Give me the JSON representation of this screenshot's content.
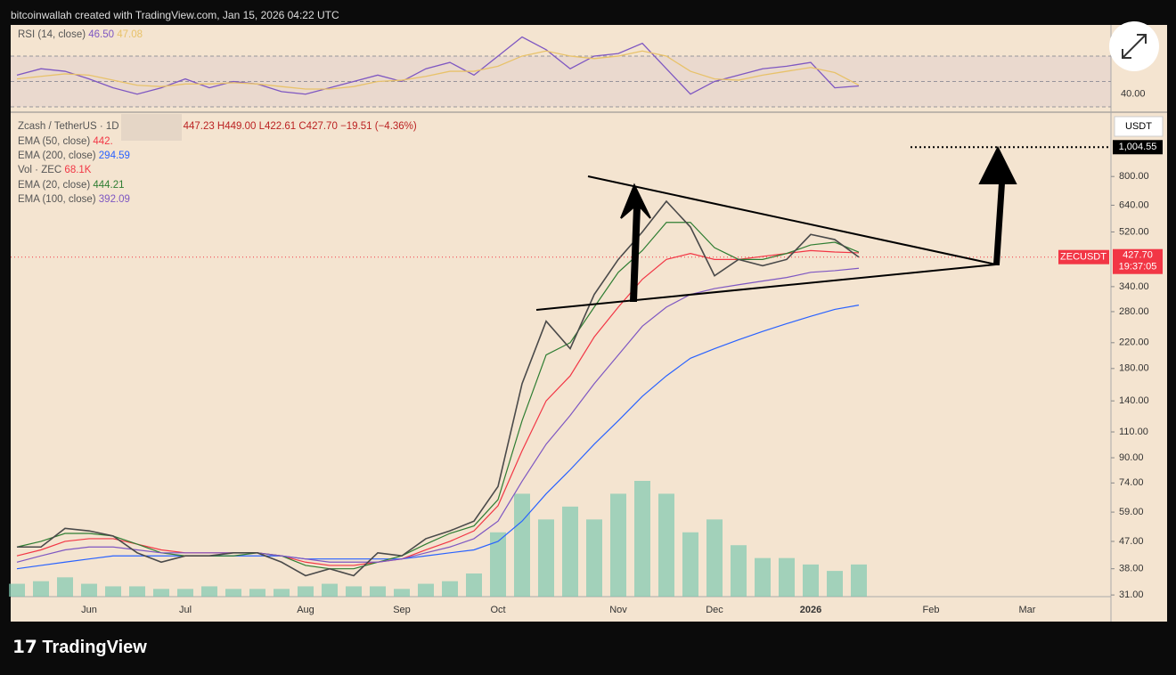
{
  "header": "bitcoinwallah created with TradingView.com, Jan 15, 2026 04:22 UTC",
  "brand": "TradingView",
  "chart_data": [
    {
      "type": "line",
      "name": "RSI (14, close)",
      "series": [
        {
          "name": "RSI (14, close)",
          "color": "#7e57c2",
          "last_label": "46.50",
          "values": [
            55,
            60,
            58,
            52,
            45,
            40,
            45,
            52,
            45,
            50,
            48,
            42,
            40,
            45,
            50,
            55,
            50,
            60,
            65,
            55,
            70,
            85,
            75,
            60,
            70,
            72,
            80,
            60,
            40,
            50,
            55,
            60,
            62,
            65,
            45,
            46.5,
            null,
            null,
            null,
            null,
            null,
            null,
            null
          ]
        },
        {
          "color": "#e8c26a",
          "last_label": "47.08",
          "values": [
            52,
            54,
            56,
            55,
            51,
            47,
            46,
            48,
            48,
            49,
            48,
            46,
            44,
            44,
            46,
            50,
            51,
            54,
            58,
            58,
            62,
            70,
            74,
            70,
            68,
            70,
            74,
            70,
            58,
            52,
            51,
            55,
            58,
            61,
            57,
            47.08,
            null,
            null,
            null,
            null,
            null,
            null,
            null
          ]
        }
      ],
      "ylim": [
        26.5,
        94.5
      ],
      "yticks": [
        {
          "value": 40,
          "label": "40.00"
        }
      ],
      "bands": [
        70,
        50,
        30
      ]
    },
    {
      "type": "line",
      "title": "Zcash / TetherUS · 1D",
      "ohlc": "447.23 H449.00 L422.61 C427.70",
      "change": "−19.51 (−4.36%)",
      "currency": "USDT",
      "symbol": "ZECUSDT",
      "countdown": "19:37:05",
      "last_label": "427.70",
      "log_scale": true,
      "target": {
        "value": 1004.55,
        "label": "1,004.55"
      },
      "categories": [
        null,
        null,
        null,
        "Jun",
        null,
        null,
        null,
        "Jul",
        null,
        null,
        null,
        null,
        "Aug",
        null,
        null,
        null,
        "Sep",
        null,
        null,
        null,
        "Oct",
        null,
        null,
        null,
        null,
        "Nov",
        null,
        null,
        null,
        "Dec",
        null,
        null,
        null,
        "2026",
        null,
        null,
        null,
        null,
        "Feb",
        null,
        null,
        null,
        "Mar"
      ],
      "close": {
        "color": "#4a4a4a",
        "values": [
          45,
          45,
          52,
          51,
          49,
          43,
          40,
          42,
          42,
          43,
          43,
          40,
          36,
          38,
          36,
          43,
          42,
          48,
          51,
          55,
          72,
          160,
          260,
          210,
          320,
          420,
          520,
          660,
          540,
          370,
          420,
          400,
          420,
          510,
          490,
          427.7,
          null,
          null,
          null,
          null,
          null,
          null,
          null
        ]
      },
      "series": [
        {
          "name": "EMA (50, close)",
          "color": "#f23645",
          "last_label": "442.",
          "values": [
            42,
            44,
            47,
            48,
            48,
            46,
            44,
            43,
            43,
            43,
            43,
            42,
            40,
            39,
            39,
            40,
            41,
            44,
            47,
            51,
            62,
            95,
            140,
            170,
            230,
            290,
            360,
            420,
            440,
            420,
            420,
            430,
            440,
            450,
            445,
            442,
            null,
            null,
            null,
            null,
            null,
            null,
            null
          ]
        },
        {
          "name": "EMA (200, close)",
          "color": "#2962ff",
          "last_label": "294.59",
          "values": [
            38,
            39,
            40,
            41,
            42,
            42,
            42,
            42,
            42,
            42,
            42,
            42,
            41,
            41,
            41,
            41,
            41,
            42,
            43,
            44,
            47,
            55,
            68,
            82,
            100,
            120,
            145,
            170,
            195,
            210,
            225,
            240,
            255,
            270,
            285,
            294.59,
            null,
            null,
            null,
            null,
            null,
            null,
            null
          ]
        },
        {
          "name": "EMA (20, close)",
          "color": "#2e7d32",
          "last_label": "444.21",
          "values": [
            45,
            47,
            50,
            50,
            49,
            46,
            43,
            42,
            42,
            42,
            43,
            42,
            39,
            38,
            38,
            40,
            42,
            46,
            50,
            53,
            65,
            120,
            200,
            220,
            290,
            380,
            450,
            560,
            560,
            460,
            420,
            420,
            440,
            470,
            480,
            444.21,
            null,
            null,
            null,
            null,
            null,
            null,
            null
          ]
        },
        {
          "name": "EMA (100, close)",
          "color": "#7e57c2",
          "last_label": "392.09",
          "values": [
            40,
            42,
            44,
            45,
            45,
            44,
            43,
            43,
            43,
            43,
            43,
            42,
            41,
            40,
            40,
            40,
            41,
            43,
            45,
            48,
            55,
            75,
            100,
            125,
            160,
            200,
            250,
            290,
            320,
            335,
            345,
            355,
            365,
            380,
            385,
            392.09,
            null,
            null,
            null,
            null,
            null,
            null,
            null
          ]
        }
      ],
      "volume": {
        "name": "Vol · ZEC",
        "last_label": "68.1K",
        "color": "#7fc9b0",
        "values": [
          10,
          12,
          15,
          10,
          8,
          8,
          6,
          6,
          8,
          6,
          6,
          6,
          8,
          10,
          8,
          8,
          6,
          10,
          12,
          18,
          50,
          80,
          60,
          70,
          60,
          80,
          90,
          80,
          50,
          60,
          40,
          30,
          30,
          25,
          20,
          25,
          null,
          null,
          null,
          null,
          null,
          null,
          null
        ]
      },
      "ylim": [
        30.6,
        1300
      ],
      "yticks": [
        {
          "value": 31,
          "label": "31.00"
        },
        {
          "value": 38,
          "label": "38.00"
        },
        {
          "value": 47,
          "label": "47.00"
        },
        {
          "value": 59,
          "label": "59.00"
        },
        {
          "value": 74,
          "label": "74.00"
        },
        {
          "value": 90,
          "label": "90.00"
        },
        {
          "value": 110,
          "label": "110.00"
        },
        {
          "value": 140,
          "label": "140.00"
        },
        {
          "value": 180,
          "label": "180.00"
        },
        {
          "value": 220,
          "label": "220.00"
        },
        {
          "value": 280,
          "label": "280.00"
        },
        {
          "value": 340,
          "label": "340.00"
        },
        {
          "value": 520,
          "label": "520.00"
        },
        {
          "value": 640,
          "label": "640.00"
        },
        {
          "value": 800,
          "label": "800.00"
        }
      ]
    }
  ]
}
